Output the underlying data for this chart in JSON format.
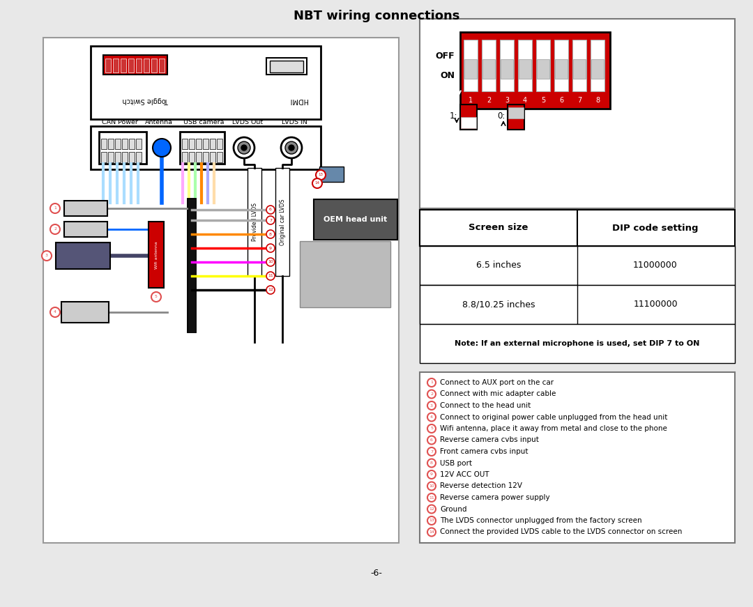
{
  "title": "NBT wiring connections",
  "page_number": "-6-",
  "bg_color": "#e8e8e8",
  "white": "#ffffff",
  "black": "#000000",
  "red": "#cc0000",
  "legend_items": [
    {
      "num": "1",
      "text": "Connect to AUX port on the car"
    },
    {
      "num": "2",
      "text": "Connect with mic adapter cable"
    },
    {
      "num": "3",
      "text": "Connect to the head unit"
    },
    {
      "num": "4",
      "text": "Connect to original power cable unplugged from the head unit"
    },
    {
      "num": "5",
      "text": "Wifi antenna, place it away from metal and close to the phone"
    },
    {
      "num": "6",
      "text": "Reverse camera cvbs input"
    },
    {
      "num": "7",
      "text": "Front camera cvbs input"
    },
    {
      "num": "8",
      "text": "USB port"
    },
    {
      "num": "9",
      "text": "12V ACC OUT"
    },
    {
      "num": "10",
      "text": "Reverse detection 12V"
    },
    {
      "num": "11",
      "text": "Reverse camera power supply"
    },
    {
      "num": "12",
      "text": "Ground"
    },
    {
      "num": "13",
      "text": "The LVDS connector unplugged from the factory screen"
    },
    {
      "num": "14",
      "text": "Connect the provided LVDS cable to the LVDS connector on screen"
    }
  ],
  "connector_labels": [
    "CAN Power",
    "Antenna",
    "USB camera",
    "LVDS Out",
    "LVDS IN"
  ],
  "table_rows": [
    {
      "screen": "6.5 inches",
      "dip": "11000000"
    },
    {
      "screen": "8.8/10.25 inches",
      "dip": "11100000"
    }
  ],
  "table_note": "Note: If an external microphone is used, set DIP 7 to ON",
  "dip_switch_labels": [
    "1",
    "2",
    "3",
    "4",
    "5",
    "6",
    "7",
    "8"
  ],
  "oem_box_color": "#555555",
  "oem_text": "OEM head unit"
}
